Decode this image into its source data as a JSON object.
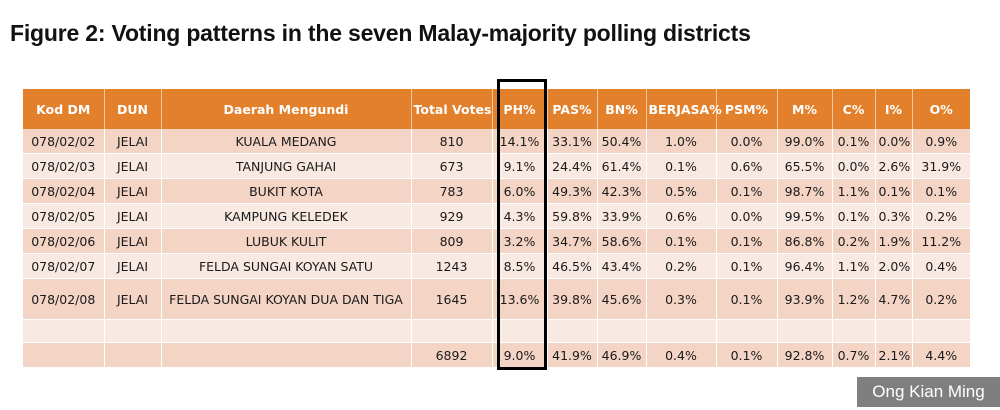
{
  "figure_title": "Figure 2: Voting patterns in the seven Malay-majority polling districts",
  "table": {
    "headers": [
      "Kod DM",
      "DUN",
      "Daerah Mengundi",
      "Total Votes",
      "PH%",
      "PAS%",
      "BN%",
      "BERJASA%",
      "PSM%",
      "M%",
      "C%",
      "I%",
      "O%"
    ],
    "rows": [
      [
        "078/02/02",
        "JELAI",
        "KUALA MEDANG",
        "810",
        "14.1%",
        "33.1%",
        "50.4%",
        "1.0%",
        "0.0%",
        "99.0%",
        "0.1%",
        "0.0%",
        "0.9%"
      ],
      [
        "078/02/03",
        "JELAI",
        "TANJUNG GAHAI",
        "673",
        "9.1%",
        "24.4%",
        "61.4%",
        "0.1%",
        "0.6%",
        "65.5%",
        "0.0%",
        "2.6%",
        "31.9%"
      ],
      [
        "078/02/04",
        "JELAI",
        "BUKIT KOTA",
        "783",
        "6.0%",
        "49.3%",
        "42.3%",
        "0.5%",
        "0.1%",
        "98.7%",
        "1.1%",
        "0.1%",
        "0.1%"
      ],
      [
        "078/02/05",
        "JELAI",
        "KAMPUNG KELEDEK",
        "929",
        "4.3%",
        "59.8%",
        "33.9%",
        "0.6%",
        "0.0%",
        "99.5%",
        "0.1%",
        "0.3%",
        "0.2%"
      ],
      [
        "078/02/06",
        "JELAI",
        "LUBUK KULIT",
        "809",
        "3.2%",
        "34.7%",
        "58.6%",
        "0.1%",
        "0.1%",
        "86.8%",
        "0.2%",
        "1.9%",
        "11.2%"
      ],
      [
        "078/02/07",
        "JELAI",
        "FELDA SUNGAI KOYAN SATU",
        "1243",
        "8.5%",
        "46.5%",
        "43.4%",
        "0.2%",
        "0.1%",
        "96.4%",
        "1.1%",
        "2.0%",
        "0.4%"
      ],
      [
        "078/02/08",
        "JELAI",
        "FELDA SUNGAI KOYAN DUA DAN TIGA",
        "1645",
        "13.6%",
        "39.8%",
        "45.6%",
        "0.3%",
        "0.1%",
        "93.9%",
        "1.2%",
        "4.7%",
        "0.2%"
      ]
    ],
    "total_row": [
      "",
      "",
      "",
      "6892",
      "9.0%",
      "41.9%",
      "46.9%",
      "0.4%",
      "0.1%",
      "92.8%",
      "0.7%",
      "2.1%",
      "4.4%"
    ]
  },
  "highlighted_column": "PH%",
  "credit": "Ong Kian Ming",
  "colors": {
    "header_bg": "#e3802c",
    "row_odd": "#f4d4c5",
    "row_even": "#f9e9e3",
    "credit_bg": "#7f7f7f"
  }
}
